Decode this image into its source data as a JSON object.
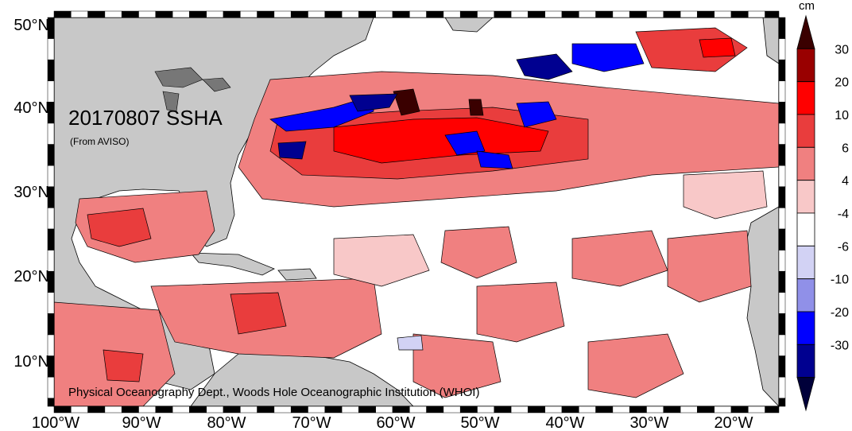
{
  "map": {
    "title": "20170807 SSHA",
    "subtitle": "(From AVISO)",
    "credit": "Physical Oceanography Dept., Woods Hole Oceanographic Institution (WHOI)",
    "lat_labels": [
      "50°N",
      "40°N",
      "30°N",
      "20°N",
      "10°N"
    ],
    "lon_labels": [
      "100°W",
      "90°W",
      "80°W",
      "70°W",
      "60°W",
      "50°W",
      "40°W",
      "30°W",
      "20°W"
    ],
    "land_color": "#c8c8c8",
    "ocean_color": "#ffffff"
  },
  "colorbar": {
    "unit": "cm",
    "tick_labels": [
      "30",
      "20",
      "10",
      "6",
      "4",
      "-4",
      "-6",
      "-10",
      "-20",
      "-30"
    ],
    "colors": [
      "#3a0000",
      "#990000",
      "#ff0000",
      "#e93d3d",
      "#f08080",
      "#f8c8c8",
      "#ffffff",
      "#d2d2f4",
      "#9090e8",
      "#0000ff",
      "#000090",
      "#00003a"
    ]
  }
}
